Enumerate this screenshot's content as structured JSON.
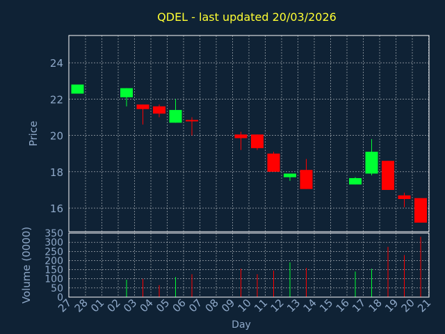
{
  "colors": {
    "background": "#0f2235",
    "title": "#ffff33",
    "axis_text": "#8fa9c9",
    "frame": "#ffffff",
    "grid": "#ffffff",
    "up": "#00ff33",
    "down": "#ff0000"
  },
  "chart_data": {
    "type": "candlestick",
    "title": "QDEL - last updated 20/03/2026",
    "xlabel": "Day",
    "price_panel": {
      "ylabel": "Price",
      "ylim": [
        14.7,
        25.5
      ],
      "yticks": [
        "16",
        "18",
        "20",
        "22",
        "24"
      ],
      "grid": true
    },
    "volume_panel": {
      "ylabel": "Volume (0000)",
      "ylim": [
        0,
        350
      ],
      "yticks": [
        "0",
        "50",
        "100",
        "150",
        "200",
        "250",
        "300",
        "350"
      ],
      "grid": true
    },
    "x_ticks": [
      "27",
      "28",
      "01",
      "02",
      "03",
      "04",
      "05",
      "06",
      "07",
      "08",
      "09",
      "10",
      "11",
      "12",
      "13",
      "14",
      "15",
      "16",
      "17",
      "18",
      "19",
      "20",
      "21"
    ],
    "candles": [
      {
        "day": "27",
        "open": 22.3,
        "high": 22.8,
        "low": 22.3,
        "close": 22.8,
        "volume": 0
      },
      {
        "day": "02",
        "open": 22.1,
        "high": 22.6,
        "low": 21.6,
        "close": 22.6,
        "volume": 95
      },
      {
        "day": "03",
        "open": 21.7,
        "high": 21.7,
        "low": 20.6,
        "close": 21.45,
        "volume": 100
      },
      {
        "day": "04",
        "open": 21.6,
        "high": 21.7,
        "low": 21.0,
        "close": 21.2,
        "volume": 65
      },
      {
        "day": "05",
        "open": 20.7,
        "high": 22.0,
        "low": 20.7,
        "close": 21.4,
        "volume": 110
      },
      {
        "day": "06",
        "open": 20.85,
        "high": 21.0,
        "low": 20.0,
        "close": 20.8,
        "volume": 125
      },
      {
        "day": "09",
        "open": 20.05,
        "high": 20.2,
        "low": 19.2,
        "close": 19.85,
        "volume": 155
      },
      {
        "day": "10",
        "open": 20.05,
        "high": 20.05,
        "low": 19.2,
        "close": 19.3,
        "volume": 125
      },
      {
        "day": "11",
        "open": 19.0,
        "high": 19.1,
        "low": 18.0,
        "close": 18.0,
        "volume": 145
      },
      {
        "day": "12",
        "open": 17.7,
        "high": 17.9,
        "low": 17.5,
        "close": 17.9,
        "volume": 190
      },
      {
        "day": "13",
        "open": 18.1,
        "high": 18.7,
        "low": 17.05,
        "close": 17.05,
        "volume": 160
      },
      {
        "day": "16",
        "open": 17.3,
        "high": 17.7,
        "low": 17.3,
        "close": 17.65,
        "volume": 140
      },
      {
        "day": "17",
        "open": 17.9,
        "high": 19.8,
        "low": 17.8,
        "close": 19.1,
        "volume": 155
      },
      {
        "day": "18",
        "open": 18.6,
        "high": 18.6,
        "low": 17.0,
        "close": 17.0,
        "volume": 275
      },
      {
        "day": "19",
        "open": 16.7,
        "high": 16.85,
        "low": 16.05,
        "close": 16.5,
        "volume": 230
      },
      {
        "day": "20",
        "open": 16.55,
        "high": 16.55,
        "low": 15.2,
        "close": 15.2,
        "volume": 330
      }
    ]
  }
}
